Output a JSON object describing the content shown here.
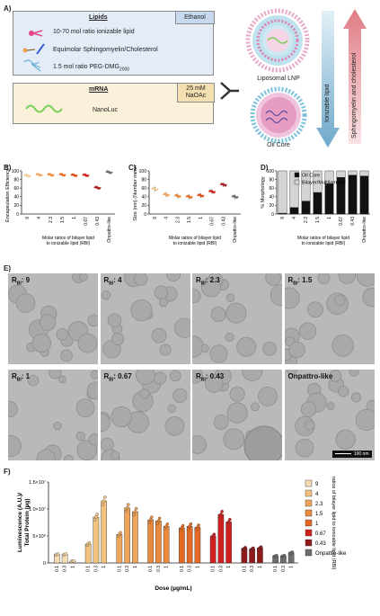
{
  "panelA": {
    "label": "A)",
    "lipids_title": "Lipids",
    "ethanol_label": "Ethanol",
    "lipid_items": [
      "10-70 mol ratio ionizable lipid",
      "Equimolar Sphingomyelin/Cholesterol",
      "1.5 mol ratio PEG-DMG"
    ],
    "peg_subscript": "2000",
    "mrna_title": "mRNA",
    "buffer_label_1": "25 mM",
    "buffer_label_2": "NaOAc",
    "mrna_item": "NanoLuc",
    "lnp_top_label": "Liposomal LNP",
    "lnp_bottom_label": "Oil Core",
    "arrow_down_label": "Ionizable lipid",
    "arrow_up_label": "Sphingomyelin and cholesterol",
    "colors": {
      "arrow_down": "#6ea8c9",
      "arrow_up": "#e07c85",
      "box_lipid": "#e3ecf7",
      "box_mrna": "#fbf1da"
    }
  },
  "panelB": {
    "label": "B)",
    "chart_data": {
      "type": "scatter",
      "ylabel": "Encapsulation Efficiency %",
      "xlabel": "Molar ratios of bilayer lipid to ionizable lipid (R",
      "xlabel_sub": "BI",
      "xlabel_end": ")",
      "categories": [
        "9",
        "4",
        "2.3",
        "1.5",
        "1",
        "0.67",
        "0.43",
        "Onpattro-like"
      ],
      "values": [
        89,
        91,
        91,
        91,
        90,
        90,
        61,
        97
      ],
      "ylim": [
        0,
        100
      ],
      "yticks": [
        "0",
        "20",
        "40",
        "60",
        "80",
        "100"
      ],
      "colors": [
        "#f2c992",
        "#f0a860",
        "#ec8b3d",
        "#e66d22",
        "#e04b14",
        "#d0201e",
        "#a81c1c",
        "#6b6b6b"
      ]
    }
  },
  "panelC": {
    "label": "C)",
    "chart_data": {
      "type": "scatter",
      "ylabel": "Size (nm) (Number mean)",
      "xlabel": "Molar ratios of bilayer lipid to ionizable lipid (R",
      "xlabel_sub": "BI",
      "xlabel_end": ")",
      "categories": [
        "9",
        "4",
        "2.3",
        "1.5",
        "1",
        "0.67",
        "0.43",
        "Onpattro-like"
      ],
      "values": [
        58,
        45,
        42,
        40,
        43,
        52,
        68,
        40
      ],
      "ylim": [
        0,
        100
      ],
      "yticks": [
        "0",
        "20",
        "40",
        "60",
        "80",
        "100"
      ]
    }
  },
  "panelD": {
    "label": "D)",
    "chart_data": {
      "type": "bar",
      "ylabel": "% Morphology",
      "xlabel": "Molar ratios of bilayer lipid to ionizable lipid (R",
      "xlabel_sub": "BI",
      "xlabel_end": ")",
      "categories": [
        "9",
        "4",
        "2.3",
        "1.5",
        "1",
        "0.67",
        "0.43",
        "Onpattro-like"
      ],
      "series": [
        {
          "name": "Oil Core",
          "values": [
            2,
            15,
            30,
            50,
            70,
            85,
            90,
            88
          ]
        },
        {
          "name": "Bilayer/Multilamellar",
          "values": [
            98,
            85,
            70,
            50,
            30,
            15,
            10,
            12
          ]
        }
      ],
      "ylim": [
        0,
        100
      ],
      "yticks": [
        "0",
        "20",
        "40",
        "60",
        "80",
        "100"
      ],
      "colors": [
        "#111111",
        "#d4d4d4"
      ]
    }
  },
  "panelE": {
    "label": "E)",
    "tiles": [
      {
        "prefix": "R",
        "sub": "BI",
        "suffix": ": 9"
      },
      {
        "prefix": "R",
        "sub": "BI",
        "suffix": ": 4"
      },
      {
        "prefix": "R",
        "sub": "BI",
        "suffix": ": 2.3"
      },
      {
        "prefix": "R",
        "sub": "BI",
        "suffix": ": 1.5"
      },
      {
        "prefix": "R",
        "sub": "BI",
        "suffix": ": 1"
      },
      {
        "prefix": "R",
        "sub": "BI",
        "suffix": ": 0.67"
      },
      {
        "prefix": "R",
        "sub": "BI",
        "suffix": ": 0.43"
      },
      {
        "prefix": "",
        "sub": "",
        "suffix": "Onpattro-like"
      }
    ],
    "scale_bar": "100 nm"
  },
  "panelF": {
    "label": "F)",
    "chart_data": {
      "type": "bar",
      "ylabel_1": "Luminescence (A.U.)/",
      "ylabel_2": "Total Protein (µg)",
      "xlabel": "Dose (µg/mL)",
      "yticks": [
        "0",
        "5×10⁶",
        "1.0×10⁷",
        "1.5×10⁷"
      ],
      "ylim": [
        0,
        15000000
      ],
      "dose_labels": [
        "0.1",
        "0.3",
        "1"
      ],
      "series": [
        {
          "name": "9",
          "values": [
            1600000,
            1600000,
            350000
          ],
          "color": "#f6dcb2"
        },
        {
          "name": "4",
          "values": [
            3500000,
            8500000,
            11500000
          ],
          "color": "#f2c27f"
        },
        {
          "name": "2.3",
          "values": [
            5300000,
            10200000,
            9500000
          ],
          "color": "#eea55b"
        },
        {
          "name": "1.5",
          "values": [
            8000000,
            7800000,
            6800000
          ],
          "color": "#ea8a3c"
        },
        {
          "name": "1",
          "values": [
            6500000,
            6800000,
            6600000
          ],
          "color": "#e46a23"
        },
        {
          "name": "0.67",
          "values": [
            5000000,
            9000000,
            7600000
          ],
          "color": "#cf1f1f"
        },
        {
          "name": "0.43",
          "values": [
            2700000,
            2600000,
            2800000
          ],
          "color": "#8e1a1a"
        },
        {
          "name": "Onpattro-like",
          "values": [
            1300000,
            1300000,
            1900000
          ],
          "color": "#6d6d6d"
        }
      ],
      "legend_title": "Molar ratios of bilayer lipid to ionizable lipid (R",
      "legend_title_sub": "BI",
      "legend_title_end": ")"
    }
  }
}
